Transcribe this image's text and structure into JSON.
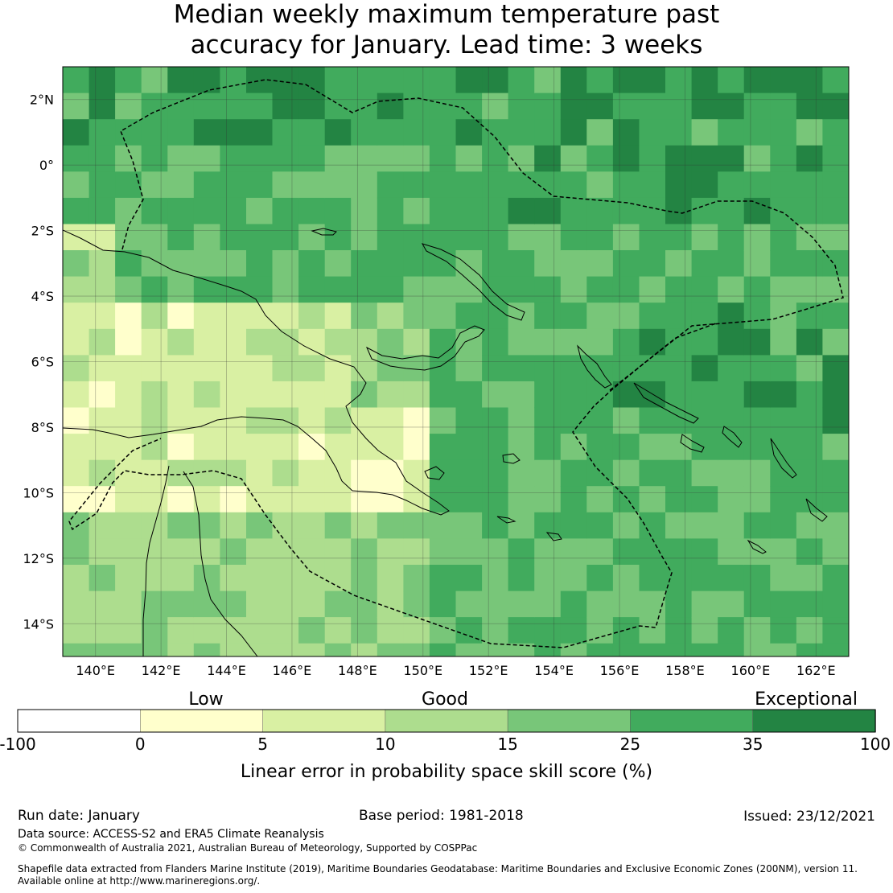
{
  "title_line1": "Median weekly maximum temperature past",
  "title_line2": "accuracy for January. Lead time: 3 weeks",
  "map": {
    "lon_labels": [
      "140°E",
      "142°E",
      "144°E",
      "146°E",
      "148°E",
      "150°E",
      "152°E",
      "154°E",
      "156°E",
      "158°E",
      "160°E",
      "162°E"
    ],
    "lat_labels": [
      "2°N",
      "0°",
      "2°S",
      "4°S",
      "6°S",
      "8°S",
      "10°S",
      "12°S",
      "14°S"
    ],
    "lon_values": [
      140,
      142,
      144,
      146,
      148,
      150,
      152,
      154,
      156,
      158,
      160,
      162
    ],
    "lat_values": [
      2,
      0,
      -2,
      -4,
      -6,
      -8,
      -10,
      -12,
      -14
    ],
    "lon_range": [
      139,
      163
    ],
    "lat_range": [
      -15,
      3
    ],
    "grid_step_deg": 0.8
  },
  "colorbar": {
    "quality_labels": [
      "Low",
      "Good",
      "Exceptional"
    ],
    "tick_labels": [
      "-100",
      "0",
      "5",
      "10",
      "15",
      "25",
      "35",
      "100"
    ],
    "colors": [
      "#ffffff",
      "#ffffcc",
      "#d9f0a3",
      "#addd8e",
      "#78c679",
      "#41ab5d",
      "#238443"
    ],
    "label": "Linear error in probability space skill score (%)"
  },
  "footer": {
    "run_date": "Run date: January",
    "base_period": "Base period: 1981-2018",
    "issued": "Issued: 23/12/2021",
    "data_source": "Data source: ACCESS-S2 and ERA5 Climate Reanalysis",
    "copyright": "© Commonwealth of Australia 2021, Australian Bureau of Meteorology, Supported by COSPPac",
    "shapefile_line1": "Shapefile data extracted from Flanders Marine Institute (2019), Maritime Boundaries Geodatabase: Maritime Boundaries and Exclusive Economic Zones (200NM), version 11.",
    "shapefile_line2": "Available online at http://www.marineregions.org/."
  }
}
